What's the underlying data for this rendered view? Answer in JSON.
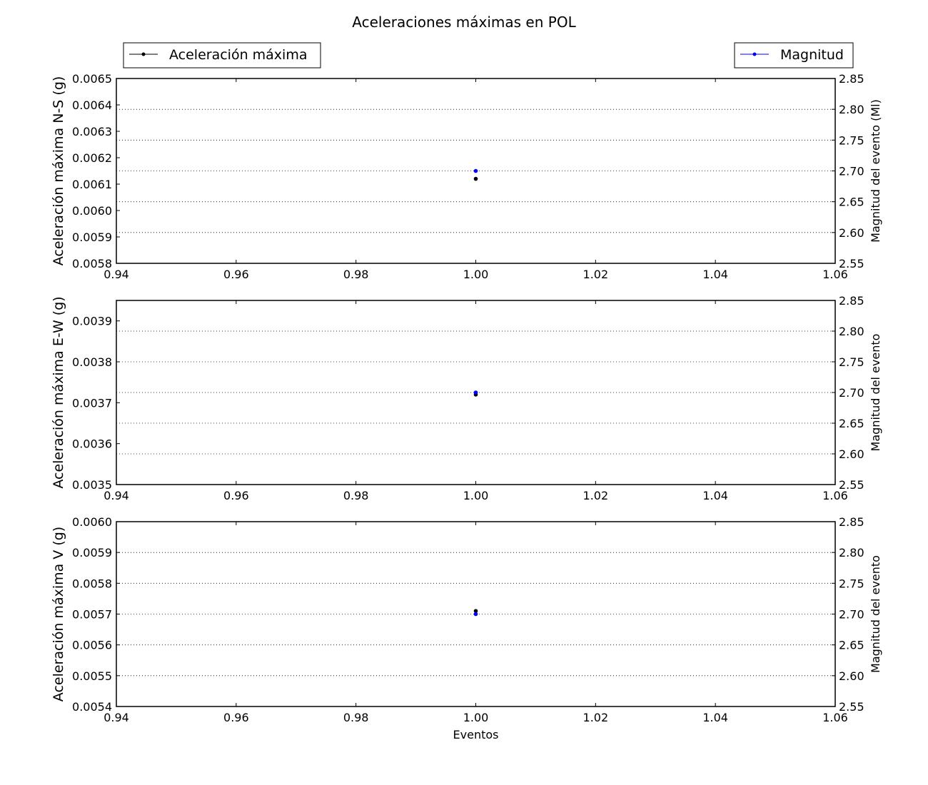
{
  "figure": {
    "title": "Aceleraciones máximas en POL",
    "legends": [
      {
        "label": "Aceleración máxima",
        "color": "#000000",
        "position": "top-left"
      },
      {
        "label": "Magnitud",
        "color": "#0000ff",
        "position": "top-right"
      }
    ]
  },
  "chart_data": [
    {
      "type": "scatter",
      "xlabel": "",
      "ylabel": "Aceleración máxima N-S (g)",
      "y2label": "Magnitud del evento (Ml)",
      "xlim": [
        0.94,
        1.06
      ],
      "ylim": [
        0.0058,
        0.0065
      ],
      "y2lim": [
        2.55,
        2.85
      ],
      "xticks": [
        "0.94",
        "0.96",
        "0.98",
        "1.00",
        "1.02",
        "1.04",
        "1.06"
      ],
      "yticks": [
        "0.0058",
        "0.0059",
        "0.0060",
        "0.0061",
        "0.0062",
        "0.0063",
        "0.0064",
        "0.0065"
      ],
      "y2ticks": [
        "2.55",
        "2.60",
        "2.65",
        "2.70",
        "2.75",
        "2.80",
        "2.85"
      ],
      "grid": "y2-dotted",
      "series": [
        {
          "name": "Aceleración máxima",
          "axis": "left",
          "color": "#000000",
          "x": [
            1.0
          ],
          "y": [
            0.00612
          ]
        },
        {
          "name": "Magnitud",
          "axis": "right",
          "color": "#0000ff",
          "x": [
            1.0
          ],
          "y": [
            2.7
          ]
        }
      ]
    },
    {
      "type": "scatter",
      "xlabel": "",
      "ylabel": "Aceleración máxima E-W (g)",
      "y2label": "Magnitud del evento",
      "xlim": [
        0.94,
        1.06
      ],
      "ylim": [
        0.0035,
        0.00395
      ],
      "y2lim": [
        2.55,
        2.85
      ],
      "xticks": [
        "0.94",
        "0.96",
        "0.98",
        "1.00",
        "1.02",
        "1.04",
        "1.06"
      ],
      "yticks": [
        "0.0035",
        "0.0036",
        "0.0037",
        "0.0038",
        "0.0039"
      ],
      "y2ticks": [
        "2.55",
        "2.60",
        "2.65",
        "2.70",
        "2.75",
        "2.80",
        "2.85"
      ],
      "grid": "y2-dotted",
      "series": [
        {
          "name": "Aceleración máxima",
          "axis": "left",
          "color": "#000000",
          "x": [
            1.0
          ],
          "y": [
            0.00372
          ]
        },
        {
          "name": "Magnitud",
          "axis": "right",
          "color": "#0000ff",
          "x": [
            1.0
          ],
          "y": [
            2.7
          ]
        }
      ]
    },
    {
      "type": "scatter",
      "xlabel": "Eventos",
      "ylabel": "Aceleración máxima V (g)",
      "y2label": "Magnitud del evento",
      "xlim": [
        0.94,
        1.06
      ],
      "ylim": [
        0.0054,
        0.006
      ],
      "y2lim": [
        2.55,
        2.85
      ],
      "xticks": [
        "0.94",
        "0.96",
        "0.98",
        "1.00",
        "1.02",
        "1.04",
        "1.06"
      ],
      "yticks": [
        "0.0054",
        "0.0055",
        "0.0056",
        "0.0057",
        "0.0058",
        "0.0059",
        "0.0060"
      ],
      "y2ticks": [
        "2.55",
        "2.60",
        "2.65",
        "2.70",
        "2.75",
        "2.80",
        "2.85"
      ],
      "grid": "y2-dotted",
      "series": [
        {
          "name": "Aceleración máxima",
          "axis": "left",
          "color": "#000000",
          "x": [
            1.0
          ],
          "y": [
            0.00571
          ]
        },
        {
          "name": "Magnitud",
          "axis": "right",
          "color": "#0000ff",
          "x": [
            1.0
          ],
          "y": [
            2.7
          ]
        }
      ]
    }
  ]
}
